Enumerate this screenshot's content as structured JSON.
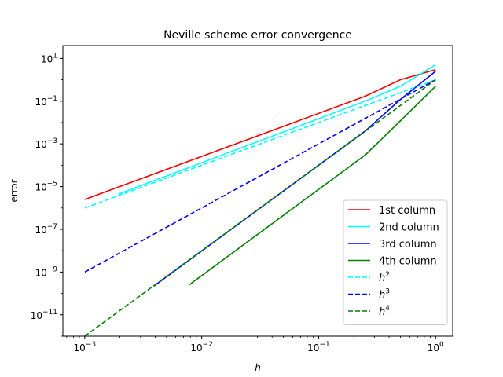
{
  "chart_data": {
    "type": "line",
    "title": "Neville scheme error convergence",
    "xlabel": "h",
    "ylabel": "error",
    "xscale": "log",
    "yscale": "log",
    "xlim": [
      0.00065,
      1.4
    ],
    "ylim": [
      1e-12,
      40
    ],
    "x_ticks": [
      {
        "value": 0.001,
        "base": "10",
        "exp": "−3"
      },
      {
        "value": 0.01,
        "base": "10",
        "exp": "−2"
      },
      {
        "value": 0.1,
        "base": "10",
        "exp": "−1"
      },
      {
        "value": 1,
        "base": "10",
        "exp": "0"
      }
    ],
    "y_ticks": [
      {
        "value": 1e-11,
        "base": "10",
        "exp": "−11"
      },
      {
        "value": 1e-09,
        "base": "10",
        "exp": "−9"
      },
      {
        "value": 1e-07,
        "base": "10",
        "exp": "−7"
      },
      {
        "value": 1e-05,
        "base": "10",
        "exp": "−5"
      },
      {
        "value": 0.001,
        "base": "10",
        "exp": "−3"
      },
      {
        "value": 0.1,
        "base": "10",
        "exp": "−1"
      },
      {
        "value": 10,
        "base": "10",
        "exp": "1"
      }
    ],
    "grid": false,
    "legend_position": "lower-right",
    "series": [
      {
        "name": "1st column",
        "color": "#ff0000",
        "dash": "solid",
        "x": [
          0.001,
          0.25,
          0.5,
          1.0
        ],
        "y": [
          2.5e-06,
          0.17,
          1.0,
          3.0
        ]
      },
      {
        "name": "2nd column",
        "color": "#00ffff",
        "dash": "solid",
        "x": [
          0.00195,
          0.25,
          0.5,
          1.0
        ],
        "y": [
          4.5e-06,
          0.1,
          0.5,
          5.0
        ]
      },
      {
        "name": "3rd column",
        "color": "#0000ff",
        "dash": "solid",
        "x": [
          0.0039,
          0.25,
          0.5,
          1.0
        ],
        "y": [
          2.2e-10,
          0.004,
          0.12,
          2.5
        ]
      },
      {
        "name": "4th column",
        "color": "#008000",
        "dash": "solid",
        "x": [
          0.0078,
          0.25,
          0.5,
          1.0
        ],
        "y": [
          2.5e-10,
          0.0003,
          0.012,
          0.5
        ]
      },
      {
        "name": "h²",
        "legend_base": "h",
        "legend_exp": "2",
        "color": "#00ffff",
        "dash": "dashed",
        "x": [
          0.001,
          1.0
        ],
        "y": [
          1e-06,
          1.0
        ]
      },
      {
        "name": "h³",
        "legend_base": "h",
        "legend_exp": "3",
        "color": "#0000ff",
        "dash": "dashed",
        "x": [
          0.001,
          1.0
        ],
        "y": [
          1e-09,
          1.0
        ]
      },
      {
        "name": "h⁴",
        "legend_base": "h",
        "legend_exp": "4",
        "color": "#008000",
        "dash": "dashed",
        "x": [
          0.001,
          1.0
        ],
        "y": [
          1e-12,
          1.0
        ]
      }
    ]
  }
}
